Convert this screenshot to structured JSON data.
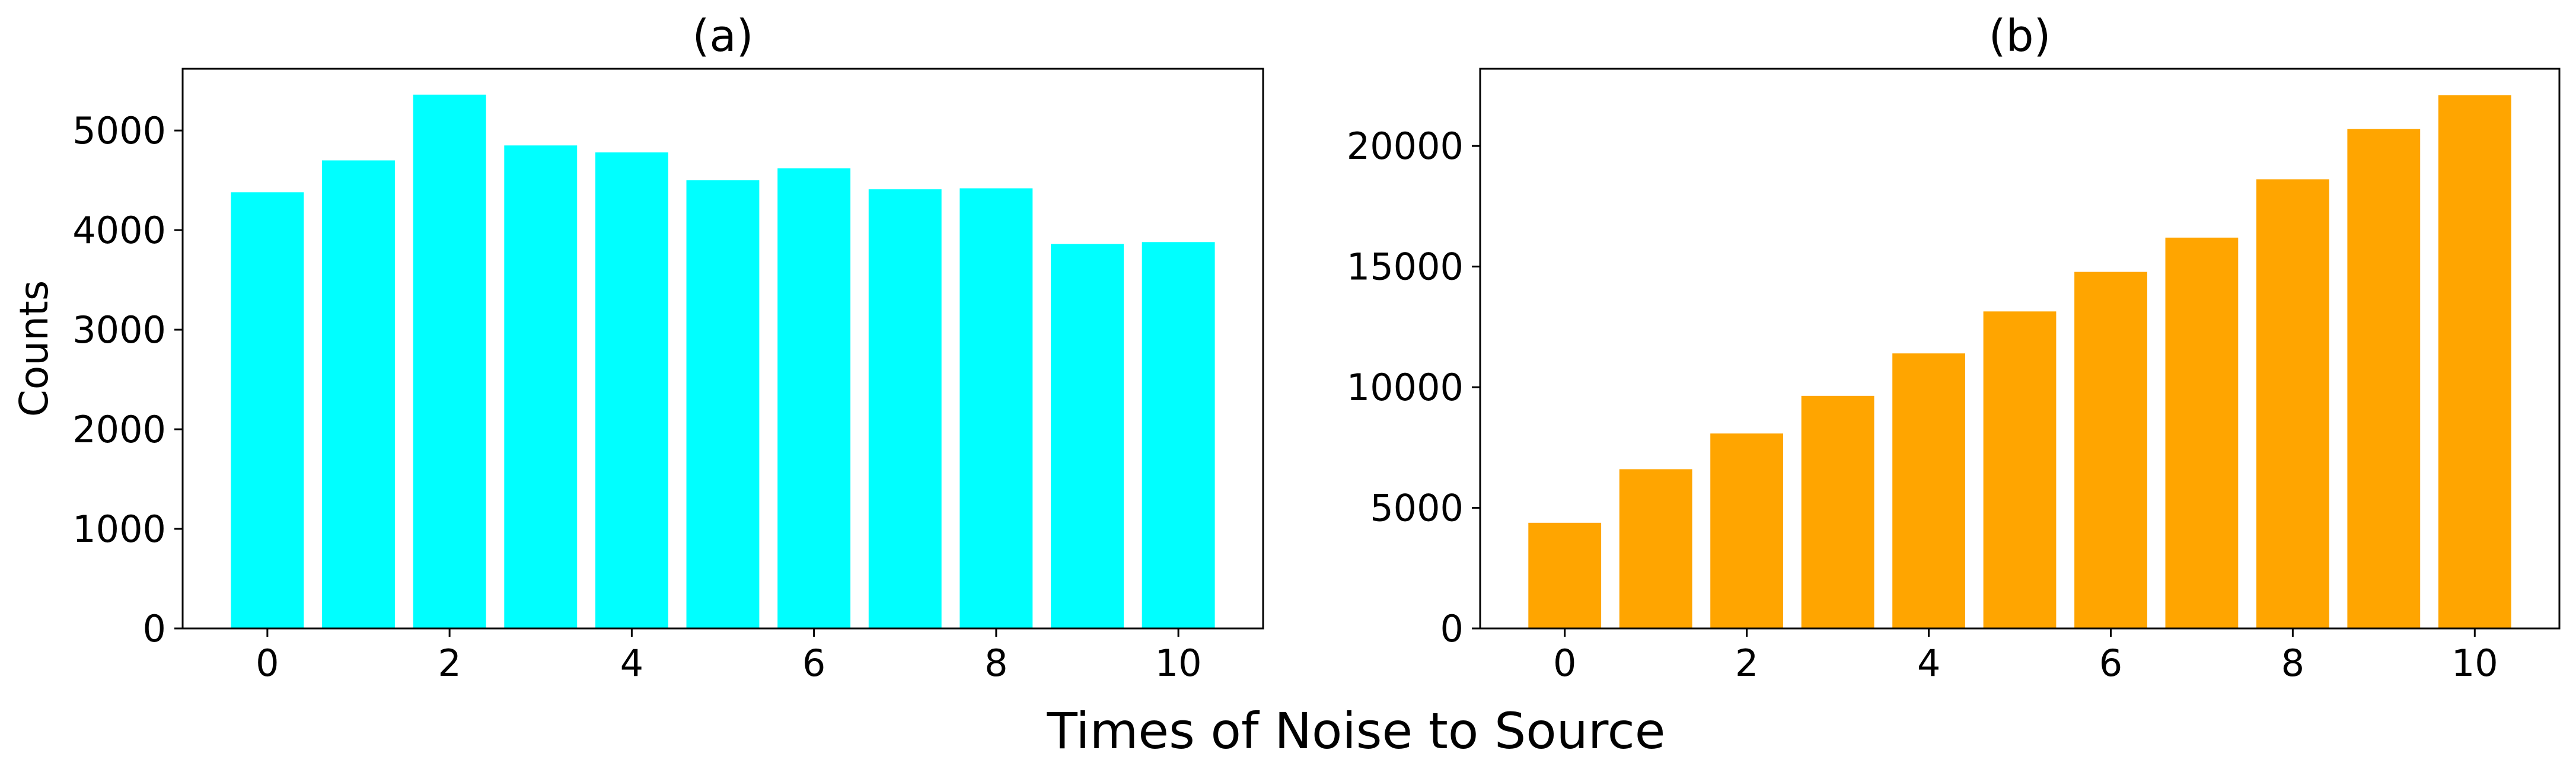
{
  "figure": {
    "xlabel": "Times of Noise to Source"
  },
  "chart_data": [
    {
      "type": "bar",
      "title": "(a)",
      "xlabel": "",
      "ylabel": "Counts",
      "categories": [
        0,
        1,
        2,
        3,
        4,
        5,
        6,
        7,
        8,
        9,
        10
      ],
      "values": [
        4380,
        4700,
        5360,
        4850,
        4780,
        4500,
        4620,
        4410,
        4420,
        3860,
        3880
      ],
      "color": "#00FFFF",
      "xlim": [
        -0.93,
        10.93
      ],
      "ylim": [
        0,
        5620
      ],
      "xticks": [
        0,
        2,
        4,
        6,
        8,
        10
      ],
      "yticks": [
        0,
        1000,
        2000,
        3000,
        4000,
        5000
      ],
      "grid": false
    },
    {
      "type": "bar",
      "title": "(b)",
      "xlabel": "",
      "ylabel": "",
      "categories": [
        0,
        1,
        2,
        3,
        4,
        5,
        6,
        7,
        8,
        9,
        10
      ],
      "values": [
        4380,
        6600,
        8080,
        9640,
        11400,
        13140,
        14780,
        16200,
        18620,
        20700,
        22110
      ],
      "color": "#FFA500",
      "xlim": [
        -0.93,
        10.93
      ],
      "ylim": [
        0,
        23200
      ],
      "xticks": [
        0,
        2,
        4,
        6,
        8,
        10
      ],
      "yticks": [
        0,
        5000,
        10000,
        15000,
        20000
      ],
      "grid": false
    }
  ]
}
